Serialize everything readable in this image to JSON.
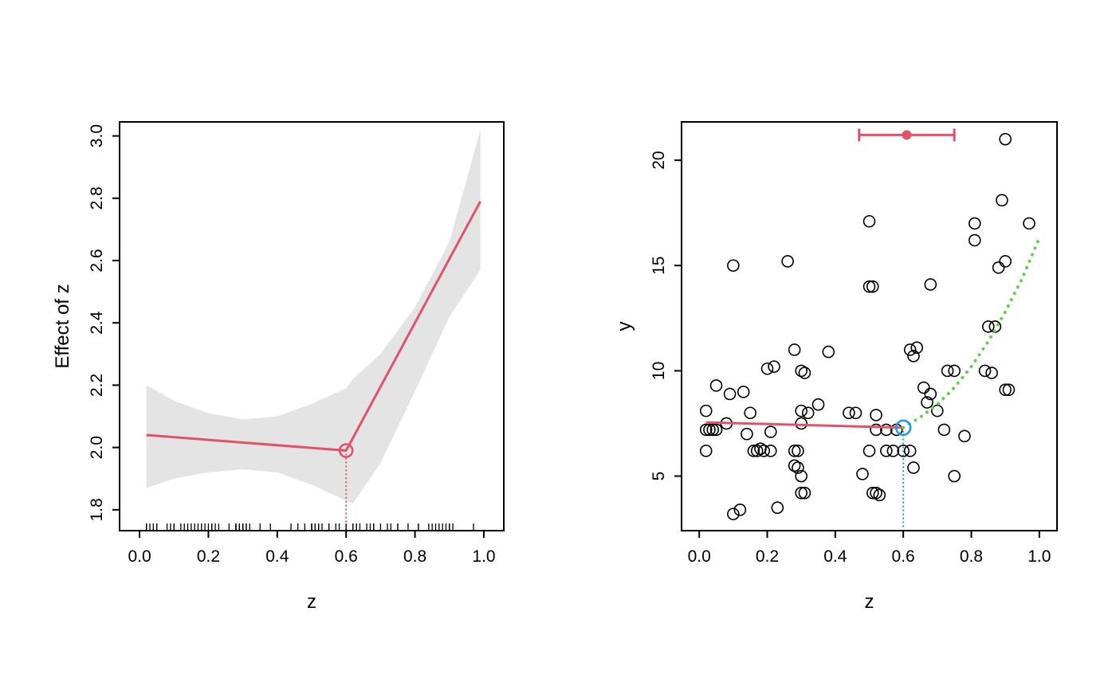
{
  "palette": {
    "red": "#DF536B",
    "green": "#61D04F",
    "blue": "#2297E6",
    "band_gray": "#E4E4E4",
    "black": "#000000",
    "background": "#FFFFFF"
  },
  "chart_data": [
    {
      "name": "effect-plot",
      "type": "line",
      "title": "",
      "xlabel": "z",
      "ylabel": "Effect of z",
      "xlim": [
        -0.058,
        1.058
      ],
      "ylim": [
        1.733,
        3.045
      ],
      "xticks": [
        0,
        0.2,
        0.4,
        0.6,
        0.8,
        1
      ],
      "xtick_labels": [
        "0.0",
        "0.2",
        "0.4",
        "0.6",
        "0.8",
        "1.0"
      ],
      "yticks": [
        1.8,
        2.0,
        2.2,
        2.4,
        2.6,
        2.8,
        3.0
      ],
      "ytick_labels": [
        "1.8",
        "2.0",
        "2.2",
        "2.4",
        "2.6",
        "2.8",
        "3.0"
      ],
      "grid": false,
      "band": {
        "name": "confidence-band",
        "color": "#E4E4E4",
        "x": [
          0.02,
          0.1,
          0.2,
          0.3,
          0.4,
          0.5,
          0.6,
          0.62,
          0.7,
          0.8,
          0.9,
          0.99
        ],
        "upper": [
          2.2,
          2.15,
          2.11,
          2.09,
          2.1,
          2.14,
          2.19,
          2.22,
          2.3,
          2.45,
          2.66,
          3.02
        ],
        "lower": [
          1.87,
          1.9,
          1.92,
          1.93,
          1.92,
          1.88,
          1.83,
          1.82,
          1.95,
          2.18,
          2.42,
          2.57
        ]
      },
      "lines": [
        {
          "name": "fitted-effect-line",
          "color": "#DF536B",
          "width": 3,
          "dash": "solid",
          "x": [
            0.02,
            0.6,
            0.99
          ],
          "y": [
            2.04,
            1.99,
            2.79
          ]
        }
      ],
      "threshold": {
        "name": "threshold-guide",
        "x": 0.6,
        "y_top": 1.99,
        "color": "#DF536B",
        "dash": "dotted",
        "width": 2.2
      },
      "breakpoint": {
        "name": "breakpoint-marker",
        "x": 0.6,
        "y": 1.99,
        "color": "#DF536B",
        "r": 8
      },
      "rug": {
        "name": "data-rug",
        "color": "#000000",
        "values": [
          0.02,
          0.02,
          0.02,
          0.03,
          0.04,
          0.05,
          0.05,
          0.08,
          0.09,
          0.1,
          0.1,
          0.12,
          0.13,
          0.14,
          0.15,
          0.16,
          0.17,
          0.18,
          0.19,
          0.2,
          0.21,
          0.21,
          0.22,
          0.23,
          0.26,
          0.28,
          0.28,
          0.28,
          0.29,
          0.29,
          0.3,
          0.3,
          0.3,
          0.3,
          0.3,
          0.31,
          0.31,
          0.32,
          0.35,
          0.38,
          0.44,
          0.46,
          0.48,
          0.5,
          0.5,
          0.5,
          0.51,
          0.51,
          0.52,
          0.52,
          0.52,
          0.53,
          0.55,
          0.55,
          0.57,
          0.58,
          0.6,
          0.62,
          0.62,
          0.63,
          0.63,
          0.64,
          0.66,
          0.67,
          0.68,
          0.68,
          0.7,
          0.72,
          0.73,
          0.75,
          0.75,
          0.78,
          0.81,
          0.81,
          0.84,
          0.85,
          0.86,
          0.87,
          0.88,
          0.89,
          0.9,
          0.9,
          0.9,
          0.91,
          0.97
        ]
      }
    },
    {
      "name": "scatter-plot",
      "type": "scatter",
      "title": "",
      "xlabel": "z",
      "ylabel": "y",
      "xlim": [
        -0.052,
        1.052
      ],
      "ylim": [
        2.41,
        21.82
      ],
      "xticks": [
        0,
        0.2,
        0.4,
        0.6,
        0.8,
        1
      ],
      "xtick_labels": [
        "0.0",
        "0.2",
        "0.4",
        "0.6",
        "0.8",
        "1.0"
      ],
      "yticks": [
        5,
        10,
        15,
        20
      ],
      "ytick_labels": [
        "5",
        "10",
        "15",
        "20"
      ],
      "grid": false,
      "points": [
        [
          0.02,
          8.1
        ],
        [
          0.02,
          7.2
        ],
        [
          0.03,
          7.2
        ],
        [
          0.04,
          7.2
        ],
        [
          0.05,
          7.2
        ],
        [
          0.02,
          6.2
        ],
        [
          0.05,
          9.3
        ],
        [
          0.08,
          7.5
        ],
        [
          0.09,
          8.9
        ],
        [
          0.1,
          15.0
        ],
        [
          0.1,
          3.2
        ],
        [
          0.12,
          3.4
        ],
        [
          0.13,
          9.0
        ],
        [
          0.14,
          7.0
        ],
        [
          0.15,
          8.0
        ],
        [
          0.16,
          6.2
        ],
        [
          0.17,
          6.2
        ],
        [
          0.18,
          6.3
        ],
        [
          0.19,
          6.2
        ],
        [
          0.21,
          6.2
        ],
        [
          0.2,
          10.1
        ],
        [
          0.22,
          10.2
        ],
        [
          0.21,
          7.1
        ],
        [
          0.23,
          3.5
        ],
        [
          0.26,
          15.2
        ],
        [
          0.28,
          11.0
        ],
        [
          0.28,
          6.2
        ],
        [
          0.29,
          6.2
        ],
        [
          0.28,
          5.5
        ],
        [
          0.29,
          5.4
        ],
        [
          0.3,
          10.0
        ],
        [
          0.31,
          9.9
        ],
        [
          0.3,
          8.1
        ],
        [
          0.32,
          8.0
        ],
        [
          0.3,
          7.5
        ],
        [
          0.3,
          5.0
        ],
        [
          0.3,
          4.2
        ],
        [
          0.31,
          4.2
        ],
        [
          0.35,
          8.4
        ],
        [
          0.38,
          10.9
        ],
        [
          0.44,
          8.0
        ],
        [
          0.46,
          8.0
        ],
        [
          0.48,
          5.1
        ],
        [
          0.5,
          17.1
        ],
        [
          0.5,
          14.0
        ],
        [
          0.51,
          14.0
        ],
        [
          0.5,
          6.2
        ],
        [
          0.51,
          4.2
        ],
        [
          0.52,
          4.2
        ],
        [
          0.53,
          4.1
        ],
        [
          0.52,
          7.9
        ],
        [
          0.52,
          7.2
        ],
        [
          0.55,
          7.2
        ],
        [
          0.55,
          6.2
        ],
        [
          0.57,
          6.2
        ],
        [
          0.58,
          7.2
        ],
        [
          0.6,
          6.2
        ],
        [
          0.62,
          11.0
        ],
        [
          0.63,
          10.7
        ],
        [
          0.64,
          11.1
        ],
        [
          0.62,
          6.2
        ],
        [
          0.63,
          5.4
        ],
        [
          0.66,
          9.2
        ],
        [
          0.67,
          8.5
        ],
        [
          0.68,
          14.1
        ],
        [
          0.68,
          8.9
        ],
        [
          0.7,
          8.1
        ],
        [
          0.73,
          10.0
        ],
        [
          0.75,
          10.0
        ],
        [
          0.72,
          7.2
        ],
        [
          0.75,
          5.0
        ],
        [
          0.78,
          6.9
        ],
        [
          0.81,
          17.0
        ],
        [
          0.81,
          16.2
        ],
        [
          0.84,
          10.0
        ],
        [
          0.85,
          12.1
        ],
        [
          0.87,
          12.1
        ],
        [
          0.86,
          9.9
        ],
        [
          0.89,
          18.1
        ],
        [
          0.9,
          21.0
        ],
        [
          0.9,
          15.2
        ],
        [
          0.88,
          14.9
        ],
        [
          0.9,
          9.1
        ],
        [
          0.91,
          9.1
        ],
        [
          0.97,
          17.0
        ]
      ],
      "lines": [
        {
          "name": "fit-below-threshold",
          "color": "#DF536B",
          "width": 3,
          "dash": "solid",
          "x": [
            0.02,
            0.6
          ],
          "y": [
            7.55,
            7.3
          ]
        },
        {
          "name": "fit-above-threshold",
          "color": "#61D04F",
          "width": 4,
          "dash": "dotted",
          "x": [
            0.6,
            0.65,
            0.7,
            0.75,
            0.8,
            0.85,
            0.9,
            0.95,
            1.0
          ],
          "y": [
            7.3,
            7.8,
            8.4,
            9.2,
            10.2,
            11.4,
            12.8,
            14.4,
            16.3
          ]
        }
      ],
      "threshold": {
        "name": "threshold-guide",
        "x": 0.6,
        "y_top": 7.3,
        "color": "#2297E6",
        "dash": "dotted",
        "width": 2.2
      },
      "breakpoint": {
        "name": "breakpoint-marker",
        "x": 0.6,
        "y": 7.3,
        "color": "#2297E6",
        "r": 9
      },
      "errorbar": {
        "name": "threshold-ci-errorbar",
        "x": 0.61,
        "xmin": 0.47,
        "xmax": 0.75,
        "y": 21.2,
        "color": "#DF536B",
        "cap": 8,
        "width": 3
      }
    }
  ]
}
